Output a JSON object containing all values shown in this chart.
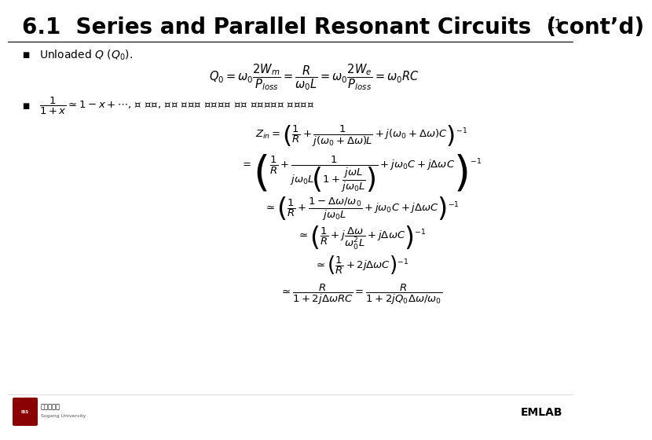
{
  "title": "6.1  Series and Parallel Resonant Circuits  (cont’d)",
  "slide_number": "11",
  "background_color": "#ffffff",
  "title_fontsize": 20,
  "slide_num_fontsize": 11,
  "emlab_text": "EMLAB",
  "bullet_color": "#000000",
  "eq_fontsize": 10,
  "eq_fontsize_sm": 9
}
